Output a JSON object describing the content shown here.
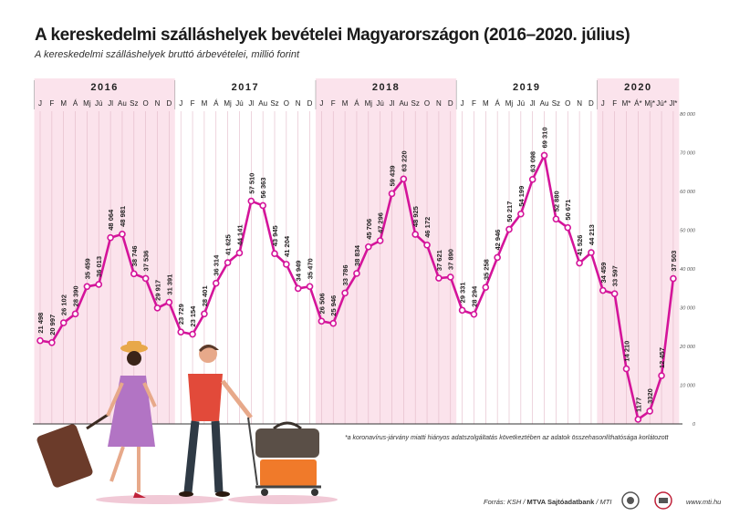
{
  "title": "A kereskedelmi szálláshelyek bevételei Magyarországon (2016–2020. július)",
  "subtitle": "A kereskedelmi szálláshelyek bruttó árbevételei, millió forint",
  "footnote": "*a koronavírus-járvány miatti hiányos adatszolgáltatás következtében az adatok összehasonlíthatósága korlátozott",
  "source_prefix": "Forrás: KSH / ",
  "source_bold": "MTVA Sajtóadatbank",
  "source_suffix": " / MTI",
  "website": "www.mti.hu",
  "colors": {
    "line": "#d4149a",
    "band": "#fbe3ec",
    "grid": "#e3b9c8",
    "text": "#222222"
  },
  "chart_data": {
    "type": "line",
    "years": [
      "2016",
      "2017",
      "2018",
      "2019",
      "2020"
    ],
    "months": [
      [
        "J",
        "F",
        "M",
        "Á",
        "Mj",
        "Jú",
        "Jl",
        "Au",
        "Sz",
        "O",
        "N",
        "D"
      ],
      [
        "J",
        "F",
        "M",
        "Á",
        "Mj",
        "Jú",
        "Jl",
        "Au",
        "Sz",
        "O",
        "N",
        "D"
      ],
      [
        "J",
        "F",
        "M",
        "Á",
        "Mj",
        "Jú",
        "Jl",
        "Au",
        "Sz",
        "O",
        "N",
        "D"
      ],
      [
        "J",
        "F",
        "M",
        "Á",
        "Mj",
        "Jú",
        "Jl",
        "Au",
        "Sz",
        "O",
        "N",
        "D"
      ],
      [
        "J",
        "F",
        "M*",
        "Á*",
        "Mj*",
        "Jú*",
        "Jl*"
      ]
    ],
    "values": [
      21498,
      20997,
      26102,
      28390,
      35459,
      36013,
      48064,
      48981,
      38746,
      37536,
      29917,
      31391,
      23729,
      23154,
      28401,
      36314,
      41625,
      44141,
      57510,
      56363,
      43945,
      41204,
      34949,
      35470,
      26506,
      25946,
      33786,
      38834,
      45706,
      47296,
      59439,
      63220,
      48925,
      46172,
      37621,
      37890,
      29331,
      28294,
      35258,
      42946,
      50217,
      54199,
      63098,
      69310,
      52880,
      50671,
      41526,
      44213,
      34459,
      33597,
      14210,
      1177,
      3320,
      12457,
      37503
    ],
    "labels": [
      "21 498",
      "20 997",
      "26 102",
      "28 390",
      "35 459",
      "36 013",
      "48 064",
      "48 981",
      "38 746",
      "37 536",
      "29 917",
      "31 391",
      "23 729",
      "23 154",
      "28 401",
      "36 314",
      "41 625",
      "44 141",
      "57 510",
      "56 363",
      "43 945",
      "41 204",
      "34 949",
      "35 470",
      "26 506",
      "25 946",
      "33 786",
      "38 834",
      "45 706",
      "47 296",
      "59 439",
      "63 220",
      "48 925",
      "46 172",
      "37 621",
      "37 890",
      "29 331",
      "28 294",
      "35 258",
      "42 946",
      "50 217",
      "54 199",
      "63 098",
      "69 310",
      "52 880",
      "50 671",
      "41 526",
      "44 213",
      "34 459",
      "33 597",
      "14 210",
      "1177",
      "3320",
      "12 457",
      "37 503"
    ],
    "y_ticks": [
      0,
      10000,
      20000,
      30000,
      40000,
      50000,
      60000,
      70000,
      80000
    ],
    "y_tick_labels": [
      "0",
      "10 000",
      "20 000",
      "30 000",
      "40 000",
      "50 000",
      "60 000",
      "70 000",
      "80 000"
    ],
    "ylim": [
      0,
      80000
    ],
    "xlabel": "",
    "ylabel": "",
    "grid": true
  }
}
